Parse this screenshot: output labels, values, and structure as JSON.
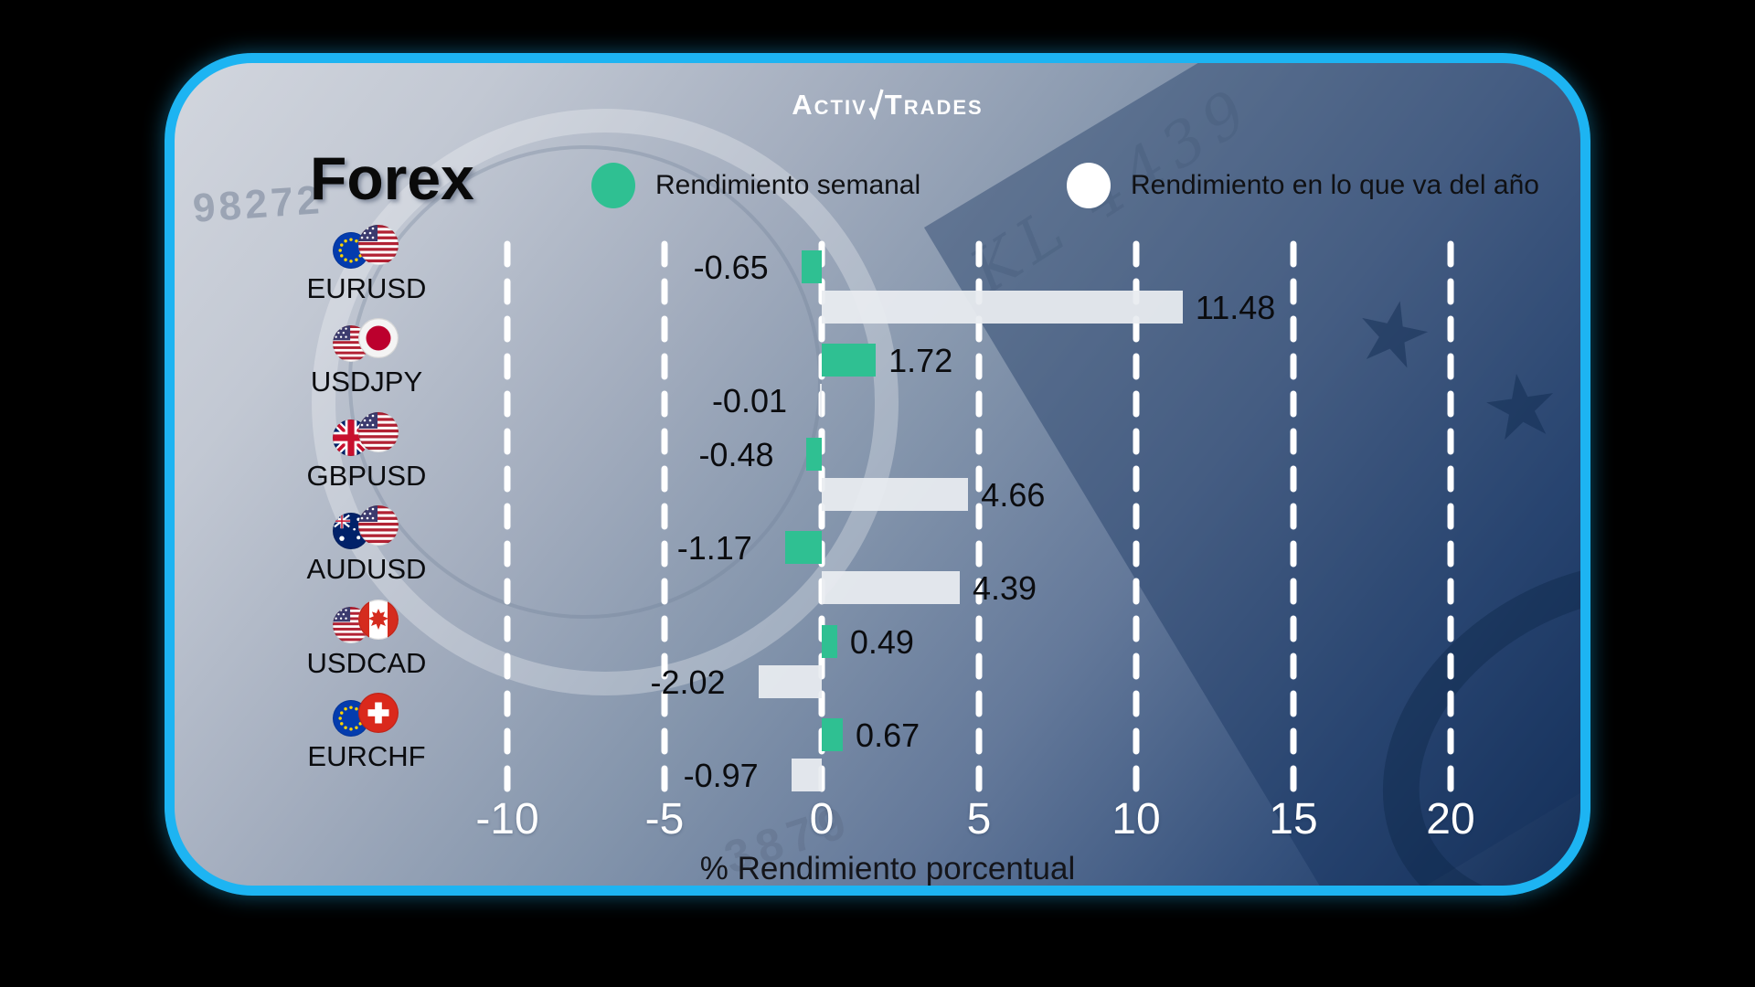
{
  "brand": {
    "name_part1": "Activ",
    "name_part2": "Trades"
  },
  "title": "Forex",
  "legend": {
    "weekly": {
      "label": "Rendimiento semanal",
      "color": "#2fc092"
    },
    "ytd": {
      "label": "Rendimiento en lo que va del año",
      "color": "#ffffff"
    }
  },
  "chart_data": {
    "type": "bar",
    "orientation": "horizontal",
    "title": "Forex",
    "xlabel": "% Rendimiento porcentual",
    "xticks": [
      -10,
      -5,
      0,
      5,
      10,
      15,
      20
    ],
    "xlim": [
      -12.5,
      22.8
    ],
    "grid": "vertical-dashed-white-lines",
    "legend_position": "top",
    "categories": [
      "EURUSD",
      "USDJPY",
      "GBPUSD",
      "AUDUSD",
      "USDCAD",
      "EURCHF"
    ],
    "flag_pairs": [
      [
        "eu",
        "us"
      ],
      [
        "us",
        "jp"
      ],
      [
        "gb",
        "us"
      ],
      [
        "au",
        "us"
      ],
      [
        "us",
        "ca"
      ],
      [
        "eu",
        "ch"
      ]
    ],
    "series": [
      {
        "name": "Rendimiento semanal",
        "color": "#2fc092",
        "values": [
          -0.65,
          1.72,
          -0.48,
          -1.17,
          0.49,
          0.67
        ]
      },
      {
        "name": "Rendimiento en lo que va del año",
        "color": "#e9ecf0",
        "values": [
          11.48,
          -0.01,
          4.66,
          4.39,
          -2.02,
          -0.97
        ]
      }
    ]
  },
  "watermarks": {
    "serial_left": "98272",
    "plate_right": "KL 4439",
    "serial_bottom": "3879",
    "star_glyph": "★"
  },
  "colors": {
    "card_border": "#1db4f2",
    "accent_green": "#2fc092",
    "bar_white": "#e9ecf0"
  }
}
